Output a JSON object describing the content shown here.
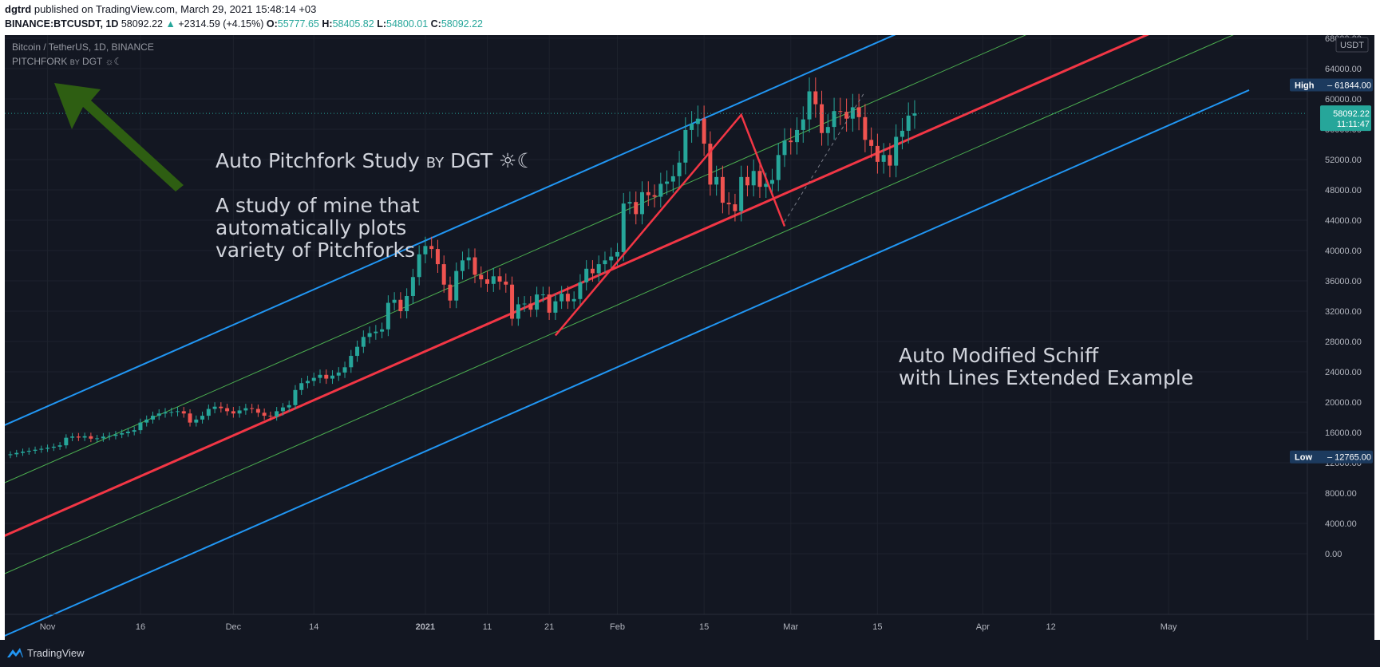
{
  "header": {
    "author": "dgtrd",
    "published_text": "published on TradingView.com, March 29, 2021 15:48:14 +03",
    "symbol": "BINANCE:BTCUSDT, 1D",
    "last_price": "58092.22",
    "change_arrow": "▲",
    "change": "+2314.59 (+4.15%)",
    "o_label": "O:",
    "o_value": "55777.65",
    "h_label": "H:",
    "h_value": "58405.82",
    "l_label": "L:",
    "l_value": "54800.01",
    "c_label": "C:",
    "c_value": "58092.22"
  },
  "legend": {
    "title": "Bitcoin / TetherUS, 1D, BINANCE",
    "indicator_main": "PITCHFORK",
    "indicator_by": "BY",
    "indicator_author": "DGT ☼☾"
  },
  "annotations": {
    "title_main": "Auto Pitchfork Study",
    "title_by": "BY",
    "title_author": "DGT ☼☾",
    "body_lines": [
      "A study of mine that",
      "automatically plots",
      "variety of Pitchforks"
    ],
    "schiff_lines": [
      "Auto Modified Schiff",
      "with Lines Extended Example"
    ]
  },
  "price_axis": {
    "currency": "USDT",
    "high_label": "High",
    "high_value": "61844.00",
    "low_label": "Low",
    "low_value": "12765.00",
    "last_price": "58092.22",
    "countdown": "11:11:47"
  },
  "footer": {
    "brand": "TradingView"
  },
  "colors": {
    "background": "#131722",
    "up": "#26a69a",
    "down": "#ef5350",
    "median": "#f23645",
    "outer": "#2196f3",
    "inner": "#4caf50",
    "arrow": "#2e5e12"
  },
  "chart_data": {
    "type": "candlestick",
    "interval": "1D",
    "date_range": [
      "2020-10-26",
      "2021-03-29"
    ],
    "x_ticks": [
      "Nov",
      "16",
      "Dec",
      "14",
      "2021",
      "11",
      "21",
      "Feb",
      "15",
      "Mar",
      "15",
      "Apr",
      "12",
      "May"
    ],
    "y_ticks": [
      "0.00",
      "4000.00",
      "8000.00",
      "12000.00",
      "16000.00",
      "20000.00",
      "24000.00",
      "28000.00",
      "32000.00",
      "36000.00",
      "40000.00",
      "44000.00",
      "48000.00",
      "52000.00",
      "56000.00",
      "60000.00",
      "64000.00",
      "68000.00"
    ],
    "ylim": [
      0,
      68000
    ],
    "close": [
      13120,
      13300,
      13460,
      13580,
      13720,
      13840,
      13980,
      14120,
      14300,
      15300,
      15460,
      15320,
      15500,
      15180,
      15220,
      15450,
      15550,
      15720,
      15900,
      16100,
      16300,
      17300,
      17700,
      18200,
      18500,
      18650,
      18700,
      18800,
      18500,
      17300,
      17700,
      18200,
      19100,
      19400,
      19200,
      18800,
      18500,
      18900,
      19200,
      19100,
      18600,
      18200,
      18100,
      18800,
      19300,
      19600,
      21600,
      22500,
      22800,
      23200,
      23600,
      23100,
      23500,
      23900,
      24600,
      26100,
      27300,
      28600,
      29100,
      29300,
      29600,
      33100,
      33500,
      32000,
      34000,
      36500,
      39500,
      40600,
      40200,
      38200,
      35500,
      33400,
      37300,
      38700,
      39100,
      36800,
      36200,
      35600,
      36600,
      35900,
      35500,
      31000,
      32900,
      33000,
      32200,
      34200,
      34200,
      31800,
      33300,
      34300,
      33300,
      33600,
      35800,
      37600,
      37000,
      38200,
      38700,
      39200,
      39800,
      46200,
      46400,
      44800,
      47700,
      47300,
      47100,
      48800,
      49100,
      49800,
      51600,
      55900,
      56700,
      57400,
      54100,
      48700,
      49700,
      46300,
      46100,
      45200,
      49700,
      48600,
      50500,
      48400,
      48800,
      49300,
      52600,
      54500,
      54300,
      55900,
      57300,
      61000,
      59300,
      55500,
      56300,
      58400,
      58300,
      57400,
      58900,
      57600,
      54600,
      53800,
      51700,
      52600,
      51200,
      55000,
      55800,
      57800,
      58092
    ]
  }
}
